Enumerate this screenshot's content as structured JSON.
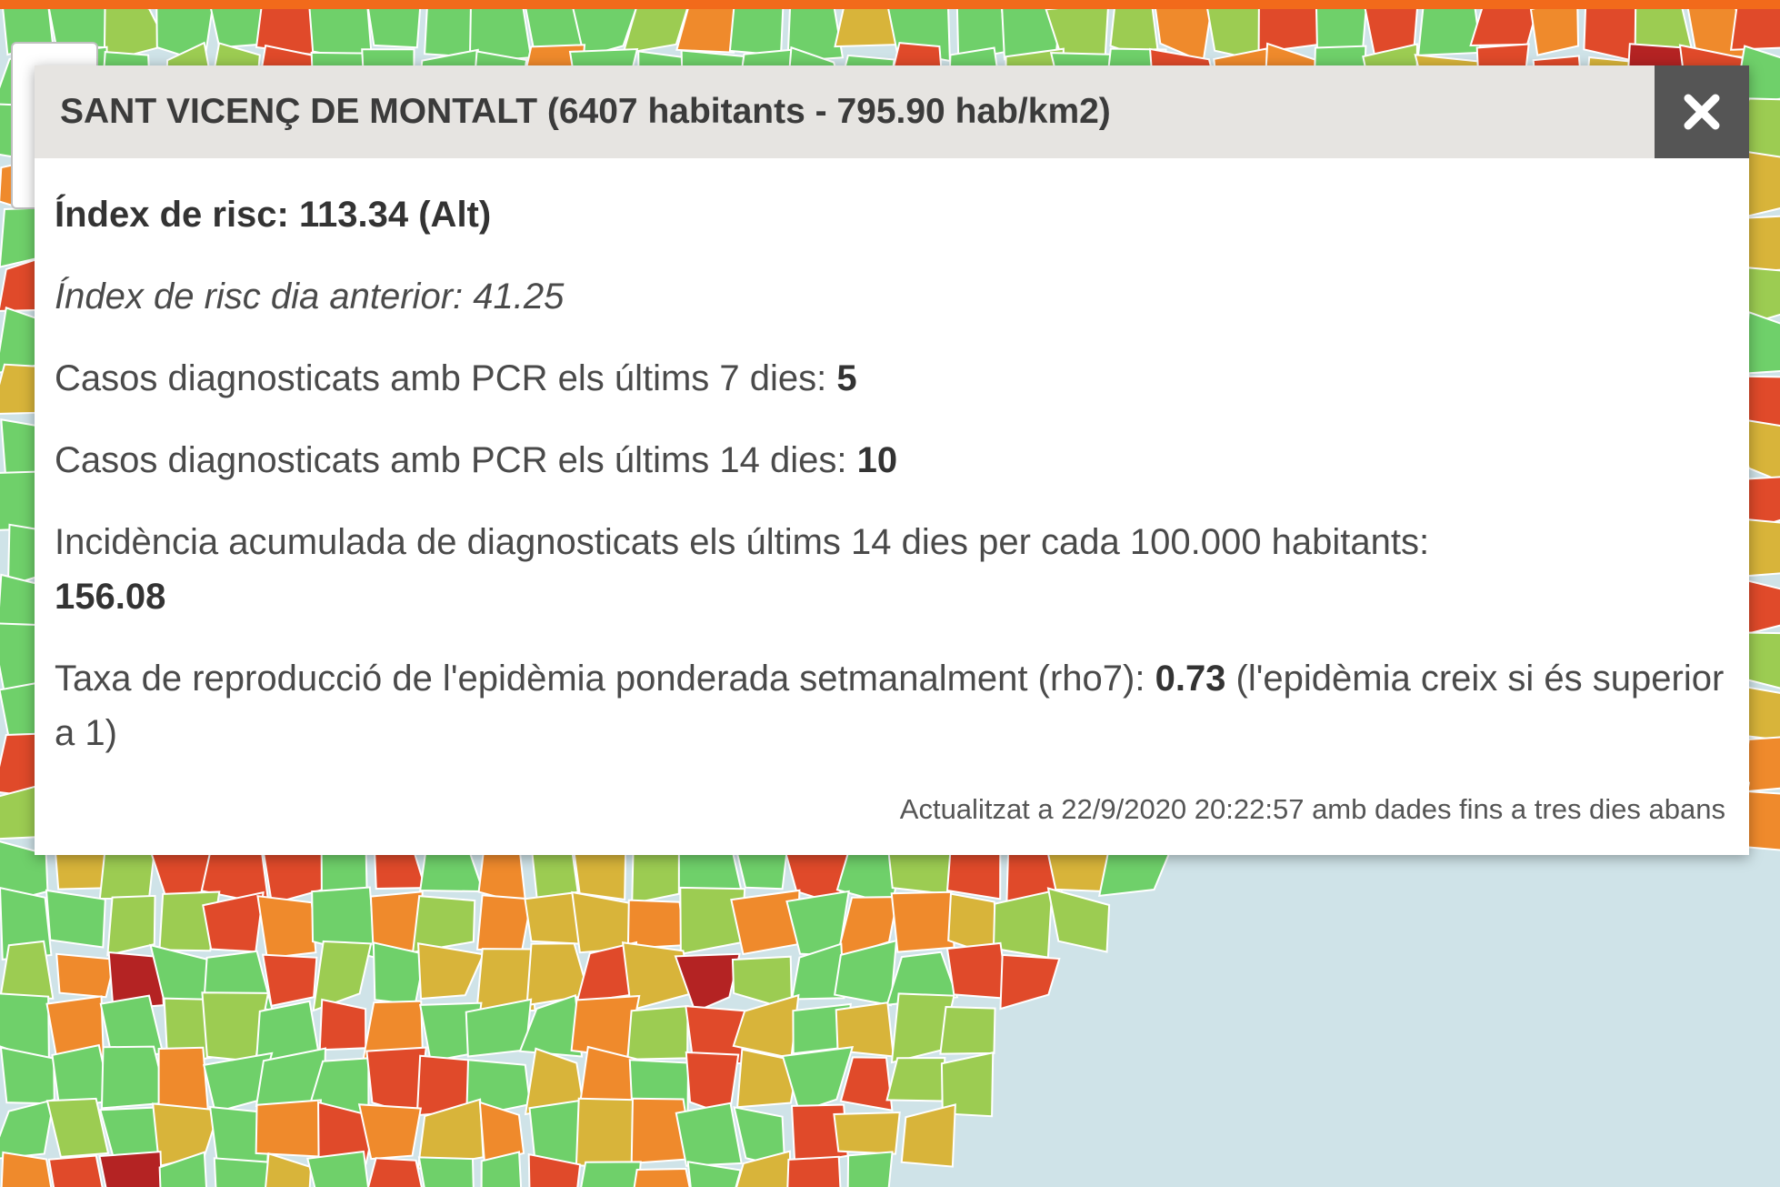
{
  "popup": {
    "title": "SANT VICENÇ DE MONTALT (6407 habitants - 795.90 hab/km2)",
    "close_icon": "close-x-icon",
    "risk_label": "Índex de risc: 113.34 (Alt)",
    "prev_risk_label": "Índex de risc dia anterior: 41.25",
    "cases7_label": "Casos diagnosticats amb PCR els últims 7 dies: ",
    "cases7_value": "5",
    "cases14_label": "Casos diagnosticats amb PCR els últims 14 dies: ",
    "cases14_value": "10",
    "incidence_label": "Incidència acumulada de diagnosticats els últims 14 dies per cada 100.000 habitants:",
    "incidence_value": "156.08",
    "rho_label": "Taxa de reproducció de l'epidèmia ponderada setmanalment (rho7): ",
    "rho_value": "0.73",
    "rho_note": " (l'epidèmia creix si és superior a 1)",
    "footer": "Actualitzat a 22/9/2020 20:22:57 amb dades fins a tres dies abans"
  },
  "map": {
    "sea_color": "#cfe3e8",
    "risk_colors": [
      "#6fd06a",
      "#9ccc52",
      "#d8b43a",
      "#ef8a2c",
      "#e04a2a",
      "#b42323"
    ]
  },
  "accent_color": "#f26a1b"
}
